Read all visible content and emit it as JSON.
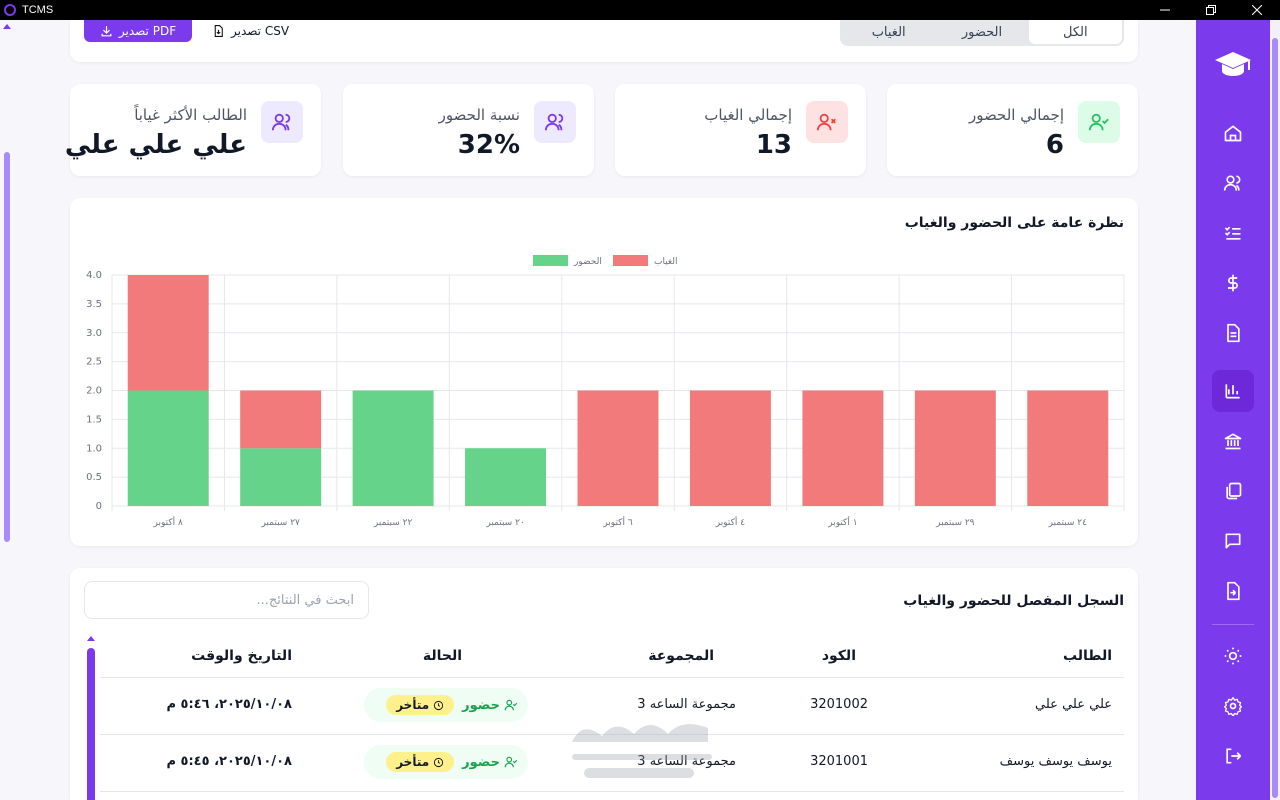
{
  "window": {
    "title": "TCMS"
  },
  "toolbar": {
    "pdf_label": "تصدير PDF",
    "csv_label": "تصدير CSV",
    "filters": [
      {
        "label": "الكل",
        "active": true
      },
      {
        "label": "الحضور",
        "active": false
      },
      {
        "label": "الغياب",
        "active": false
      }
    ]
  },
  "stats": [
    {
      "label": "إجمالي الحضور",
      "value": "6",
      "icon": "user-check-icon",
      "color": "#22c55e",
      "bg": "#dcfce7"
    },
    {
      "label": "إجمالي الغياب",
      "value": "13",
      "icon": "user-x-icon",
      "color": "#ef4444",
      "bg": "#fee2e2"
    },
    {
      "label": "نسبة الحضور",
      "value": "32%",
      "icon": "users-icon",
      "color": "#7c3aed",
      "bg": "#ede9fe"
    },
    {
      "label": "الطالب الأكثر غياباً",
      "value": "علي علي علي",
      "icon": "users-icon",
      "color": "#7c3aed",
      "bg": "#ede9fe"
    }
  ],
  "chart_title": "نظرة عامة على الحضور والغياب",
  "chart_data": {
    "type": "bar",
    "stacked": true,
    "categories": [
      "٨ أكتوبر",
      "٢٧ سبتمبر",
      "٢٢ سبتمبر",
      "٢٠ سبتمبر",
      "٦ أكتوبر",
      "٤ أكتوبر",
      "١ أكتوبر",
      "٢٩ سبتمبر",
      "٢٤ سبتمبر"
    ],
    "series": [
      {
        "name": "الحضور",
        "color": "#66d38a",
        "values": [
          2,
          1,
          2,
          1,
          0,
          0,
          0,
          0,
          0
        ]
      },
      {
        "name": "الغياب",
        "color": "#f37a7a",
        "values": [
          2,
          1,
          0,
          0,
          2,
          2,
          2,
          2,
          2
        ]
      }
    ],
    "yticks": [
      "0",
      "0.5",
      "1.0",
      "1.5",
      "2.0",
      "2.5",
      "3.0",
      "3.5",
      "4.0"
    ],
    "ylim": [
      0,
      4
    ],
    "grid": true,
    "legend": "top-center"
  },
  "table": {
    "title": "السجل المفصل للحضور والغياب",
    "search_placeholder": "ابحث في النتائج...",
    "headers": {
      "student": "الطالب",
      "code": "الكود",
      "group": "المجموعة",
      "status": "الحالة",
      "datetime": "التاريخ والوقت"
    },
    "rows": [
      {
        "student": "علي علي علي",
        "code": "3201002",
        "group": "مجموعة الساعه 3",
        "status": "حضور",
        "badge": "متأخر",
        "datetime": "٢٠٢٥/١٠/٠٨، ٥:٤٦ م"
      },
      {
        "student": "يوسف يوسف يوسف",
        "code": "3201001",
        "group": "مجموعة الساعه 3",
        "status": "حضور",
        "badge": "متأخر",
        "datetime": "٢٠٢٥/١٠/٠٨، ٥:٤٥ م"
      }
    ]
  },
  "sidebar": {
    "logo_icon": "graduation-cap-icon",
    "items": [
      {
        "icon": "home-icon",
        "active": false
      },
      {
        "icon": "users-icon",
        "active": false
      },
      {
        "icon": "checklist-icon",
        "active": false
      },
      {
        "icon": "dollar-icon",
        "active": false
      },
      {
        "icon": "document-icon",
        "active": false
      },
      {
        "icon": "bar-chart-icon",
        "active": true
      },
      {
        "icon": "bank-icon",
        "active": false
      },
      {
        "icon": "copy-icon",
        "active": false
      },
      {
        "icon": "message-icon",
        "active": false
      },
      {
        "icon": "file-export-icon",
        "active": false
      },
      {
        "icon": "sun-icon",
        "active": false
      },
      {
        "icon": "gear-icon",
        "active": false
      },
      {
        "icon": "logout-icon",
        "active": false
      }
    ]
  },
  "watermark": "mostaql-watermark"
}
